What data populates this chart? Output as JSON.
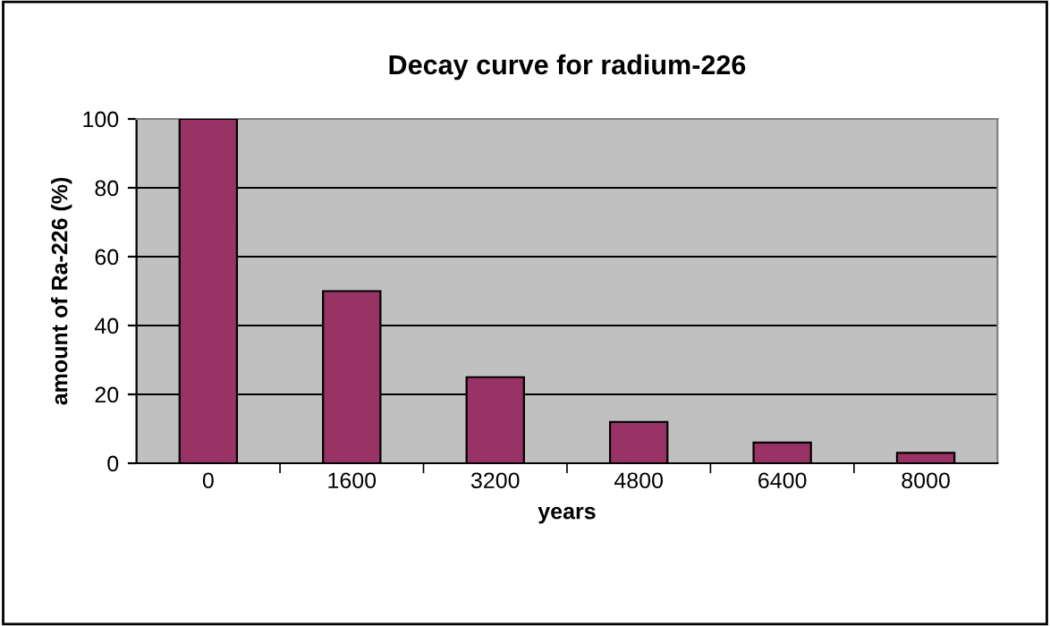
{
  "chart_data": {
    "type": "bar",
    "title": "Decay curve for radium-226",
    "xlabel": "years",
    "ylabel": "amount of Ra-226 (%)",
    "categories": [
      "0",
      "1600",
      "3200",
      "4800",
      "6400",
      "8000"
    ],
    "values": [
      100,
      50,
      25,
      12,
      6,
      3
    ],
    "color": "#993366",
    "ylim": [
      0,
      100
    ],
    "yticks": [
      0,
      20,
      40,
      60,
      80,
      100
    ],
    "grid": "y",
    "legend": false
  }
}
